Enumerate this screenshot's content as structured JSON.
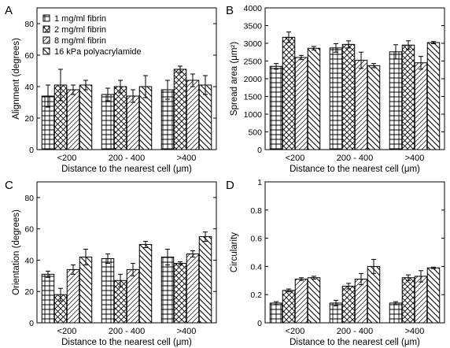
{
  "chart_data": [
    {
      "panel": "A",
      "type": "bar",
      "ylabel": "Alignment (degrees)",
      "xlabel": "Distance to the nearest cell (μm)",
      "ylim": [
        0,
        90
      ],
      "yticks": [
        0,
        20,
        40,
        60,
        80
      ],
      "categories": [
        "<200",
        "200 - 400",
        ">400"
      ],
      "legend_position": "top-left",
      "series": [
        {
          "name": "1 mg/ml fibrin",
          "pattern": "grid",
          "values": [
            34,
            35,
            38
          ],
          "errors": [
            7,
            4,
            6
          ]
        },
        {
          "name": "2 mg/ml fibrin",
          "pattern": "crosshatch",
          "values": [
            41,
            40,
            51
          ],
          "errors": [
            10,
            4,
            2
          ]
        },
        {
          "name": "8 mg/ml fibrin",
          "pattern": "diag-light",
          "values": [
            38,
            34,
            44
          ],
          "errors": [
            3,
            4,
            4
          ]
        },
        {
          "name": "16 kPa polyacrylamide",
          "pattern": "diag-bold",
          "values": [
            41,
            40,
            41
          ],
          "errors": [
            3,
            7,
            6
          ]
        }
      ]
    },
    {
      "panel": "B",
      "type": "bar",
      "ylabel": "Spread area (μm²)",
      "xlabel": "Distance to the nearest cell (μm)",
      "ylim": [
        0,
        4000
      ],
      "yticks": [
        0,
        500,
        1000,
        1500,
        2000,
        2500,
        3000,
        3500,
        4000
      ],
      "categories": [
        "<200",
        "200 - 400",
        ">400"
      ],
      "series": [
        {
          "name": "1 mg/ml fibrin",
          "pattern": "grid",
          "values": [
            2350,
            2870,
            2760
          ],
          "errors": [
            80,
            120,
            200
          ]
        },
        {
          "name": "2 mg/ml fibrin",
          "pattern": "crosshatch",
          "values": [
            3170,
            2970,
            2950
          ],
          "errors": [
            150,
            100,
            120
          ]
        },
        {
          "name": "8 mg/ml fibrin",
          "pattern": "diag-light",
          "values": [
            2600,
            2520,
            2450
          ],
          "errors": [
            60,
            230,
            180
          ]
        },
        {
          "name": "16 kPa polyacrylamide",
          "pattern": "diag-bold",
          "values": [
            2860,
            2370,
            3020
          ],
          "errors": [
            50,
            60,
            30
          ]
        }
      ]
    },
    {
      "panel": "C",
      "type": "bar",
      "ylabel": "Orientation (degrees)",
      "xlabel": "Distance to the nearest cell (μm)",
      "ylim": [
        0,
        90
      ],
      "yticks": [
        0,
        20,
        40,
        60,
        80
      ],
      "categories": [
        "<200",
        "200 - 400",
        ">400"
      ],
      "series": [
        {
          "name": "1 mg/ml fibrin",
          "pattern": "grid",
          "values": [
            31,
            41,
            42
          ],
          "errors": [
            2,
            3,
            5
          ]
        },
        {
          "name": "2 mg/ml fibrin",
          "pattern": "crosshatch",
          "values": [
            18,
            27,
            38
          ],
          "errors": [
            4,
            4,
            1
          ]
        },
        {
          "name": "8 mg/ml fibrin",
          "pattern": "diag-light",
          "values": [
            34,
            34,
            44
          ],
          "errors": [
            3,
            4,
            2
          ]
        },
        {
          "name": "16 kPa polyacrylamide",
          "pattern": "diag-bold",
          "values": [
            42,
            50,
            55
          ],
          "errors": [
            5,
            2,
            3
          ]
        }
      ]
    },
    {
      "panel": "D",
      "type": "bar",
      "ylabel": "Circularity",
      "xlabel": "Distance to the nearest cell (μm)",
      "ylim": [
        0,
        1
      ],
      "yticks": [
        0,
        0.2,
        0.4,
        0.6,
        0.8,
        1
      ],
      "categories": [
        "<200",
        "200 - 400",
        ">400"
      ],
      "series": [
        {
          "name": "1 mg/ml fibrin",
          "pattern": "grid",
          "values": [
            0.14,
            0.14,
            0.14
          ],
          "errors": [
            0.01,
            0.02,
            0.01
          ]
        },
        {
          "name": "2 mg/ml fibrin",
          "pattern": "crosshatch",
          "values": [
            0.23,
            0.26,
            0.32
          ],
          "errors": [
            0.01,
            0.02,
            0.02
          ]
        },
        {
          "name": "8 mg/ml fibrin",
          "pattern": "diag-light",
          "values": [
            0.31,
            0.31,
            0.33
          ],
          "errors": [
            0.01,
            0.04,
            0.04
          ]
        },
        {
          "name": "16 kPa polyacrylamide",
          "pattern": "diag-bold",
          "values": [
            0.32,
            0.4,
            0.39
          ],
          "errors": [
            0.01,
            0.05,
            0.005
          ]
        }
      ]
    }
  ]
}
